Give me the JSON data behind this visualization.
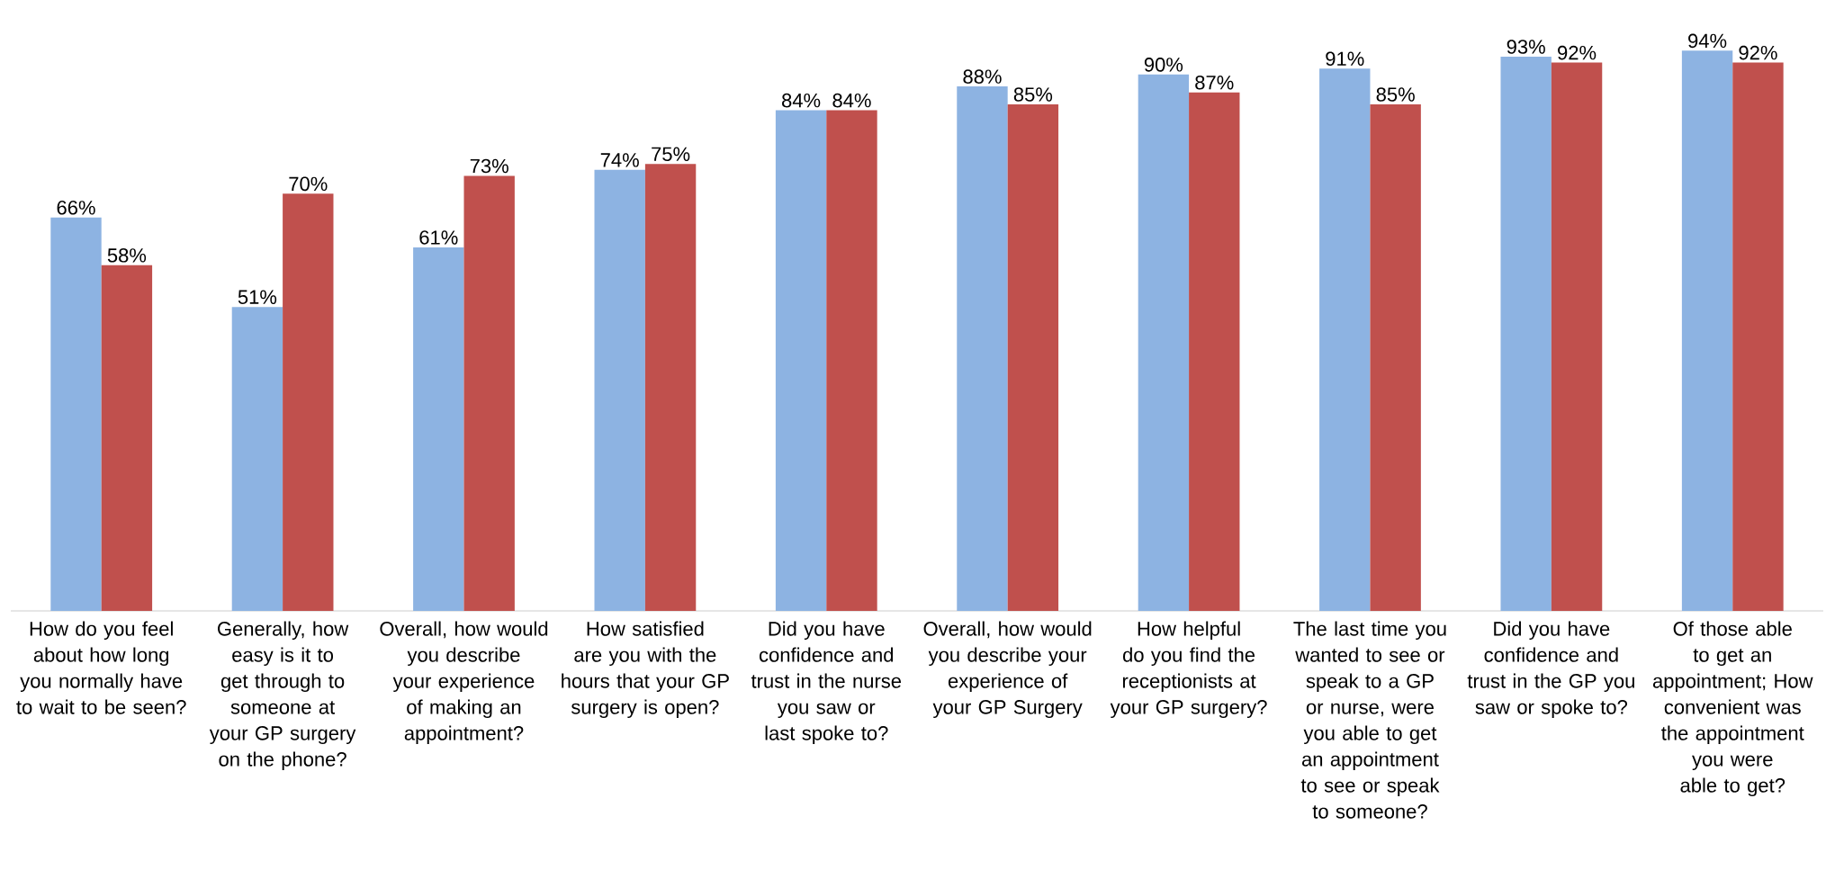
{
  "chart_data": {
    "type": "bar",
    "categories": [
      "How do you feel about how long you normally have to wait to be seen?",
      "Generally, how easy is it to get through to someone at your GP surgery on the phone?",
      "Overall, how would you describe your experience of making an appointment?",
      "How satisfied are you with the hours that your GP surgery is open?",
      "Did you have confidence and trust in the nurse you saw or last spoke to?",
      "Overall, how would you describe your experience of your GP Surgery",
      "How helpful do you find the receptionists at your GP surgery?",
      "The last time you wanted to see or speak to a GP or nurse, were you able to get an appointment to see or speak to someone?",
      "Did you have confidence and trust in the GP you saw or spoke to?",
      "Of those able to get an appointment; How convenient was the appointment you were able to get?"
    ],
    "series": [
      {
        "color": "#8db3e2",
        "values": [
          66,
          51,
          61,
          74,
          84,
          88,
          90,
          91,
          93,
          94
        ],
        "value_labels": [
          "66%",
          "51%",
          "61%",
          "74%",
          "84%",
          "88%",
          "90%",
          "91%",
          "93%",
          "94%"
        ]
      },
      {
        "color": "#c0504d",
        "values": [
          58,
          70,
          73,
          75,
          84,
          85,
          87,
          85,
          92,
          92
        ],
        "value_labels": [
          "58%",
          "70%",
          "73%",
          "75%",
          "84%",
          "85%",
          "87%",
          "85%",
          "92%",
          "92%"
        ]
      }
    ]
  }
}
